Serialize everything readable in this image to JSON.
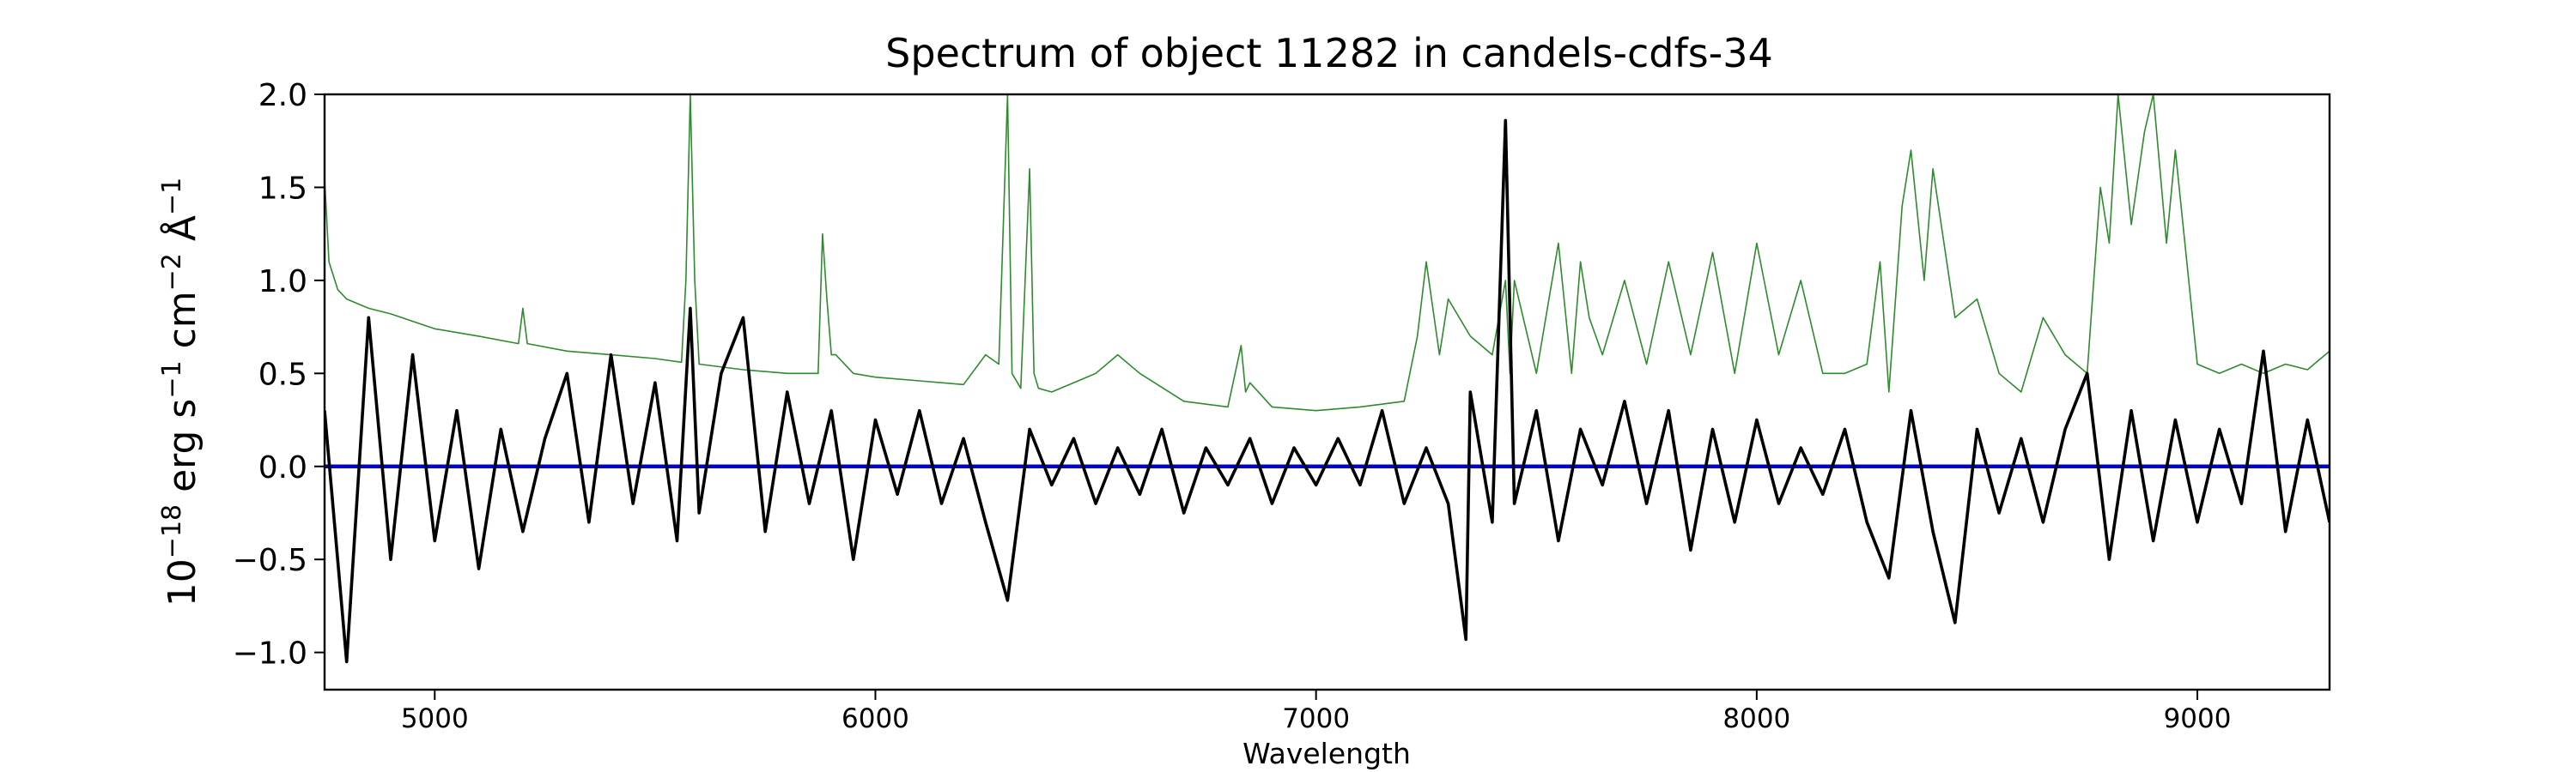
{
  "chart_data": {
    "type": "line",
    "title": "Spectrum of object 11282 in candels-cdfs-34",
    "xlabel": "Wavelength",
    "ylabel_base": "10",
    "ylabel_exp": "−18",
    "ylabel_units": [
      {
        "text": " erg s",
        "sup": "−1"
      },
      {
        "text": " cm",
        "sup": "−2"
      },
      {
        "text": " Å",
        "sup": "−1"
      }
    ],
    "xlim": [
      4750,
      9300
    ],
    "ylim": [
      -1.2,
      2.0
    ],
    "xticks": [
      5000,
      6000,
      7000,
      8000,
      9000
    ],
    "xtick_labels": [
      "5000",
      "6000",
      "7000",
      "8000",
      "9000"
    ],
    "yticks": [
      -1.0,
      -0.5,
      0.0,
      0.5,
      1.0,
      1.5,
      2.0
    ],
    "ytick_labels": [
      "−1.0",
      "−0.5",
      "0.0",
      "0.5",
      "1.0",
      "1.5",
      "2.0"
    ],
    "grid": false,
    "colors": {
      "flux": "#000000",
      "error": "#2e8b2e",
      "zero": "#0000cc"
    },
    "series": [
      {
        "key": "flux",
        "x": [
          4750,
          4800,
          4850,
          4900,
          4950,
          5000,
          5050,
          5100,
          5150,
          5200,
          5250,
          5300,
          5350,
          5400,
          5450,
          5500,
          5550,
          5580,
          5600,
          5650,
          5700,
          5750,
          5800,
          5850,
          5900,
          5950,
          6000,
          6050,
          6100,
          6150,
          6200,
          6250,
          6300,
          6350,
          6400,
          6450,
          6500,
          6550,
          6600,
          6650,
          6700,
          6750,
          6800,
          6850,
          6900,
          6950,
          7000,
          7050,
          7100,
          7150,
          7200,
          7250,
          7300,
          7340,
          7350,
          7400,
          7430,
          7450,
          7500,
          7550,
          7600,
          7650,
          7700,
          7750,
          7800,
          7850,
          7900,
          7950,
          8000,
          8050,
          8100,
          8150,
          8200,
          8250,
          8300,
          8350,
          8400,
          8450,
          8500,
          8550,
          8600,
          8650,
          8700,
          8750,
          8800,
          8850,
          8900,
          8950,
          9000,
          9050,
          9100,
          9150,
          9200,
          9250,
          9300
        ],
        "y": [
          0.3,
          -1.05,
          0.8,
          -0.5,
          0.6,
          -0.4,
          0.3,
          -0.55,
          0.2,
          -0.35,
          0.15,
          0.5,
          -0.3,
          0.6,
          -0.2,
          0.45,
          -0.4,
          0.85,
          -0.25,
          0.5,
          0.8,
          -0.35,
          0.4,
          -0.2,
          0.3,
          -0.5,
          0.25,
          -0.15,
          0.3,
          -0.2,
          0.15,
          -0.3,
          -0.72,
          0.2,
          -0.1,
          0.15,
          -0.2,
          0.1,
          -0.15,
          0.2,
          -0.25,
          0.1,
          -0.1,
          0.15,
          -0.2,
          0.1,
          -0.1,
          0.15,
          -0.1,
          0.3,
          -0.2,
          0.1,
          -0.2,
          -0.93,
          0.4,
          -0.3,
          1.86,
          -0.2,
          0.3,
          -0.4,
          0.2,
          -0.1,
          0.35,
          -0.2,
          0.3,
          -0.45,
          0.2,
          -0.3,
          0.25,
          -0.2,
          0.1,
          -0.15,
          0.2,
          -0.3,
          -0.6,
          0.3,
          -0.35,
          -0.84,
          0.2,
          -0.25,
          0.15,
          -0.3,
          0.2,
          0.5,
          -0.5,
          0.3,
          -0.4,
          0.25,
          -0.3,
          0.2,
          -0.2,
          0.62,
          -0.35,
          0.25,
          -0.3
        ]
      },
      {
        "key": "error",
        "x": [
          4750,
          4760,
          4780,
          4800,
          4850,
          4900,
          5000,
          5100,
          5190,
          5200,
          5210,
          5300,
          5400,
          5500,
          5560,
          5570,
          5580,
          5590,
          5600,
          5700,
          5800,
          5870,
          5880,
          5890,
          5900,
          5910,
          5950,
          6000,
          6100,
          6200,
          6250,
          6280,
          6300,
          6310,
          6330,
          6350,
          6360,
          6370,
          6400,
          6500,
          6550,
          6600,
          6700,
          6800,
          6830,
          6840,
          6850,
          6900,
          7000,
          7100,
          7200,
          7230,
          7250,
          7280,
          7300,
          7350,
          7400,
          7430,
          7440,
          7450,
          7500,
          7550,
          7580,
          7600,
          7620,
          7650,
          7700,
          7750,
          7800,
          7850,
          7900,
          7950,
          8000,
          8050,
          8100,
          8150,
          8200,
          8250,
          8280,
          8300,
          8330,
          8350,
          8380,
          8400,
          8450,
          8500,
          8550,
          8600,
          8650,
          8700,
          8750,
          8780,
          8800,
          8820,
          8850,
          8880,
          8900,
          8930,
          8950,
          9000,
          9050,
          9100,
          9150,
          9200,
          9250,
          9300
        ],
        "y": [
          1.55,
          1.1,
          0.95,
          0.9,
          0.85,
          0.82,
          0.74,
          0.7,
          0.66,
          0.85,
          0.66,
          0.62,
          0.6,
          0.58,
          0.56,
          1.0,
          2.0,
          1.0,
          0.55,
          0.52,
          0.5,
          0.5,
          1.25,
          0.9,
          0.6,
          0.6,
          0.5,
          0.48,
          0.46,
          0.44,
          0.6,
          0.55,
          2.0,
          0.5,
          0.42,
          1.6,
          0.5,
          0.42,
          0.4,
          0.5,
          0.6,
          0.5,
          0.35,
          0.32,
          0.65,
          0.4,
          0.45,
          0.32,
          0.3,
          0.32,
          0.35,
          0.7,
          1.1,
          0.6,
          0.9,
          0.7,
          0.6,
          1.0,
          0.5,
          1.0,
          0.5,
          1.2,
          0.5,
          1.1,
          0.8,
          0.6,
          1.0,
          0.55,
          1.1,
          0.6,
          1.15,
          0.5,
          1.2,
          0.6,
          1.0,
          0.5,
          0.5,
          0.55,
          1.1,
          0.4,
          1.4,
          1.7,
          1.0,
          1.6,
          0.8,
          0.9,
          0.5,
          0.4,
          0.8,
          0.6,
          0.5,
          1.5,
          1.2,
          2.0,
          1.3,
          1.8,
          2.0,
          1.2,
          1.7,
          0.55,
          0.5,
          0.55,
          0.5,
          0.55,
          0.52,
          0.62
        ]
      },
      {
        "key": "zero",
        "x": [
          4750,
          9300
        ],
        "y": [
          0.0,
          0.0
        ]
      }
    ]
  }
}
